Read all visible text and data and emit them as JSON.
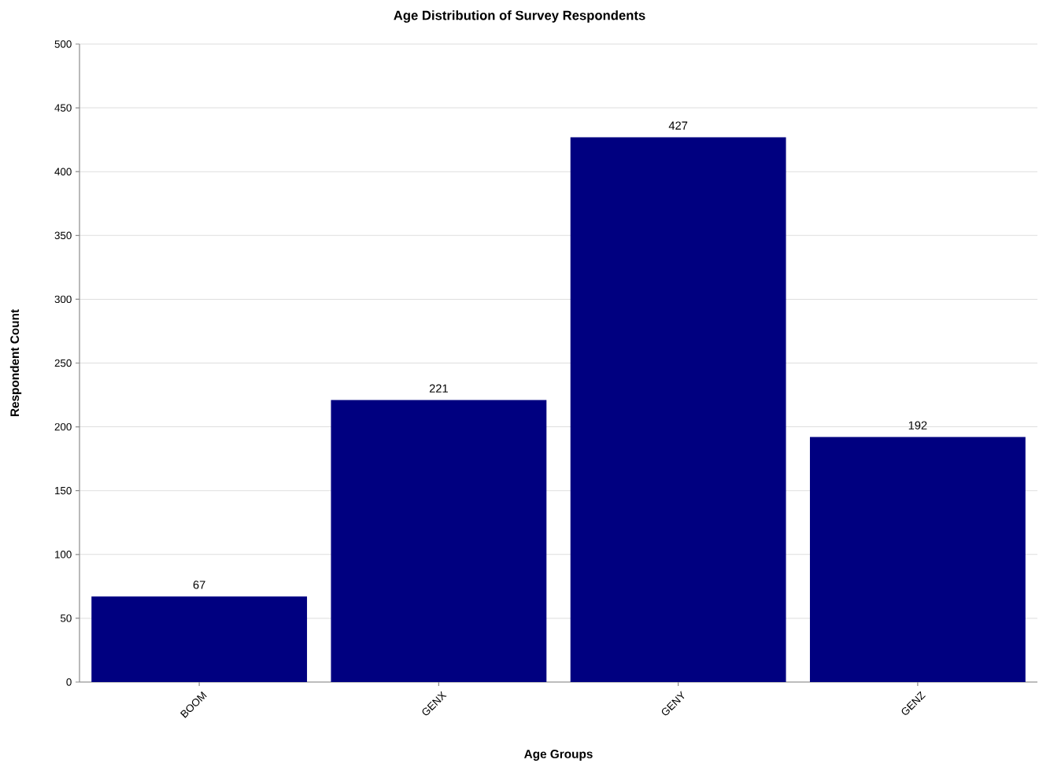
{
  "chart_data": {
    "type": "bar",
    "title": "Age Distribution of Survey Respondents",
    "xlabel": "Age Groups",
    "ylabel": "Respondent Count",
    "categories": [
      "BOOM",
      "GENX",
      "GENY",
      "GENZ"
    ],
    "values": [
      67,
      221,
      427,
      192
    ],
    "color": "#000080",
    "ylim": [
      0,
      500
    ],
    "yticks": [
      0,
      50,
      100,
      150,
      200,
      250,
      300,
      350,
      400,
      450,
      500
    ],
    "grid": "y",
    "data_labels": true
  }
}
